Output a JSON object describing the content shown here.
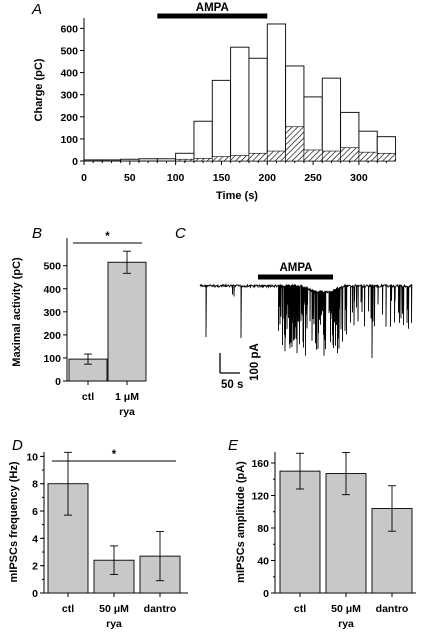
{
  "colors": {
    "bar_fill": "#c8c8c8",
    "ink": "#000000",
    "background": "#ffffff"
  },
  "panels": {
    "A": {
      "letter": "A"
    },
    "B": {
      "letter": "B"
    },
    "C": {
      "letter": "C",
      "stim_label": "AMPA",
      "scale_y_label": "100 pA",
      "scale_x_label": "50 s"
    },
    "D": {
      "letter": "D"
    },
    "E": {
      "letter": "E"
    }
  },
  "chart_data": [
    {
      "id": "A",
      "type": "bar",
      "subtype": "overlaid histogram (open = total charge, hatched = component)",
      "title": "",
      "stim_label": "AMPA",
      "stim_range": [
        80,
        200
      ],
      "xlabel": "Time (s)",
      "ylabel": "Charge (pC)",
      "xlim": [
        0,
        335
      ],
      "ylim": [
        0,
        600
      ],
      "x_ticks": [
        0,
        50,
        100,
        150,
        200,
        250,
        300
      ],
      "y_ticks": [
        0,
        100,
        200,
        300,
        400,
        500,
        600
      ],
      "bin_width": 20,
      "bin_starts": [
        0,
        20,
        40,
        60,
        80,
        100,
        120,
        140,
        160,
        180,
        200,
        220,
        240,
        260,
        280,
        300,
        320
      ],
      "series": [
        {
          "style": "open",
          "values": [
            5,
            5,
            8,
            10,
            10,
            35,
            180,
            365,
            515,
            465,
            620,
            430,
            290,
            375,
            220,
            135,
            110
          ]
        },
        {
          "style": "hatched",
          "values": [
            0,
            0,
            0,
            0,
            0,
            8,
            12,
            20,
            25,
            35,
            45,
            155,
            50,
            45,
            60,
            40,
            35
          ]
        }
      ],
      "grid": false
    },
    {
      "id": "B",
      "type": "bar",
      "ylabel": "Maximal activity (pC)",
      "ylim": [
        0,
        600
      ],
      "y_ticks": [
        0,
        100,
        200,
        300,
        400,
        500
      ],
      "categories": [
        [
          "ctl"
        ],
        [
          "1 μM",
          "rya"
        ]
      ],
      "values": [
        95,
        515
      ],
      "errors": [
        22,
        48
      ],
      "significance": [
        {
          "between": [
            0,
            1
          ],
          "label": "*"
        }
      ]
    },
    {
      "id": "D",
      "type": "bar",
      "ylabel": "mIPSCs frequency (Hz)",
      "ylim": [
        0,
        10.5
      ],
      "y_ticks": [
        0,
        2,
        4,
        6,
        8,
        10
      ],
      "categories": [
        [
          "ctl"
        ],
        [
          "50 μM",
          "rya"
        ],
        [
          "dantro"
        ]
      ],
      "values": [
        8.0,
        2.4,
        2.7
      ],
      "errors": [
        2.3,
        1.05,
        1.8
      ],
      "significance": [
        {
          "between": [
            0,
            2
          ],
          "label": "*"
        }
      ]
    },
    {
      "id": "E",
      "type": "bar",
      "ylabel": "mIPSCs amplitude (pA)",
      "ylim": [
        0,
        170
      ],
      "y_ticks": [
        0,
        40,
        80,
        120,
        160
      ],
      "categories": [
        [
          "ctl"
        ],
        [
          "50 μM",
          "rya"
        ],
        [
          "dantro"
        ]
      ],
      "values": [
        150,
        147,
        104
      ],
      "errors": [
        22,
        26,
        28
      ]
    }
  ]
}
